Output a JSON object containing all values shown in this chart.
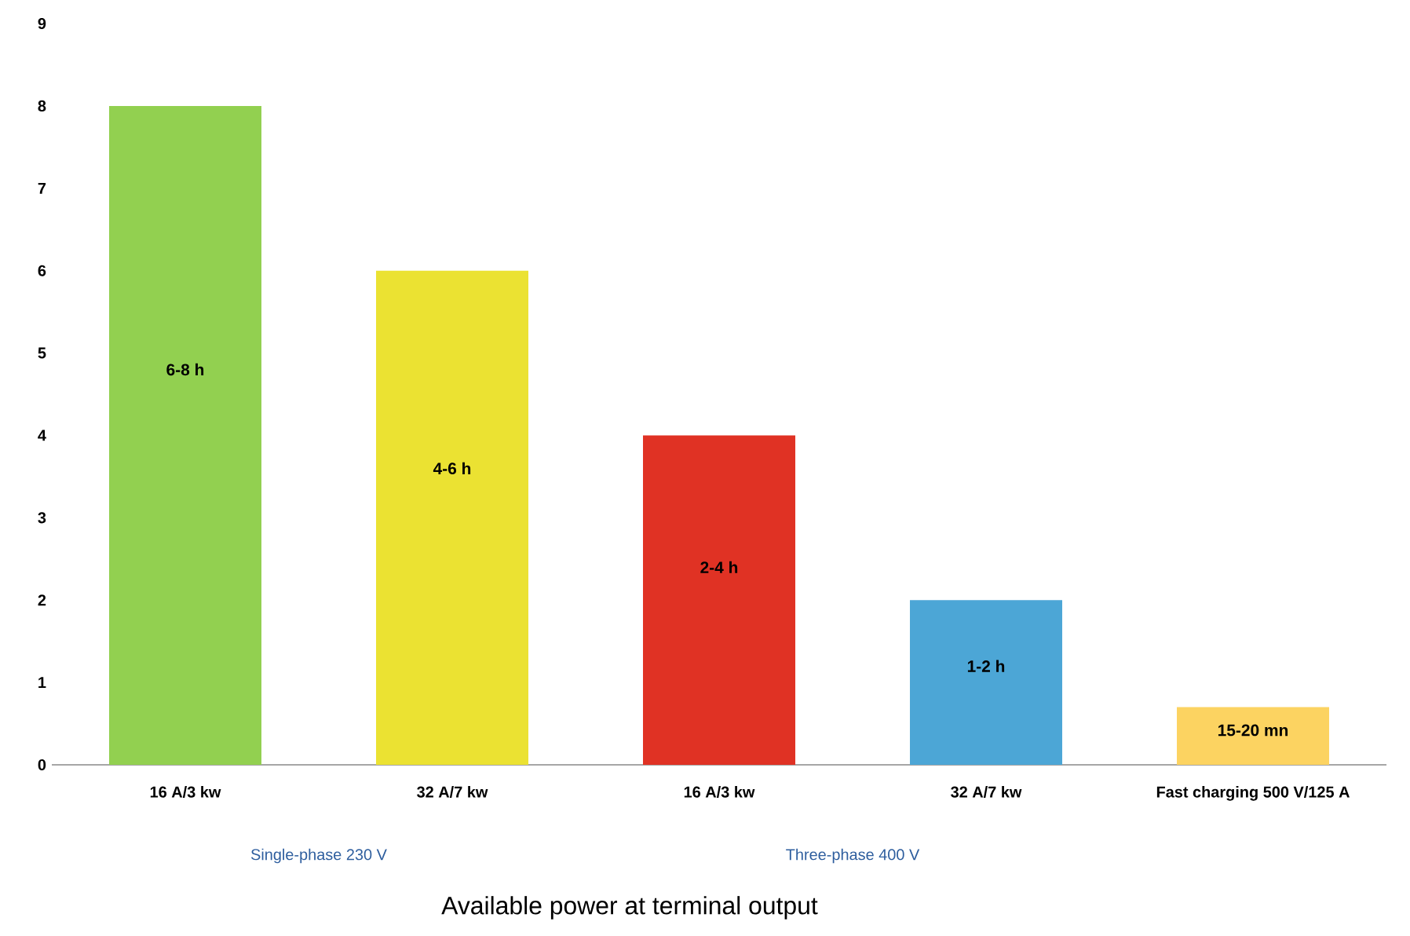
{
  "chart_data": {
    "type": "bar",
    "xlabel": "Available power at terminal output",
    "categories": [
      "16 A/3 kw",
      "32 A/7 kw",
      "16 A/3 kw",
      "32 A/7 kw",
      "Fast charging 500 V/125 A"
    ],
    "values": [
      8,
      6,
      4,
      2,
      0.7
    ],
    "colors": [
      "#92d050",
      "#ebe232",
      "#e03224",
      "#4ca6d6",
      "#fcd361"
    ],
    "value_labels": [
      "6-8 h",
      "4-6 h",
      "2-4 h",
      "1-2 h",
      "15-20 mn"
    ],
    "annotations": [
      "Single-phase 230 V",
      "Three-phase 400 V"
    ],
    "ylim": [
      0,
      9
    ],
    "yticks": [
      0,
      1,
      2,
      3,
      4,
      5,
      6,
      7,
      8,
      9
    ]
  }
}
